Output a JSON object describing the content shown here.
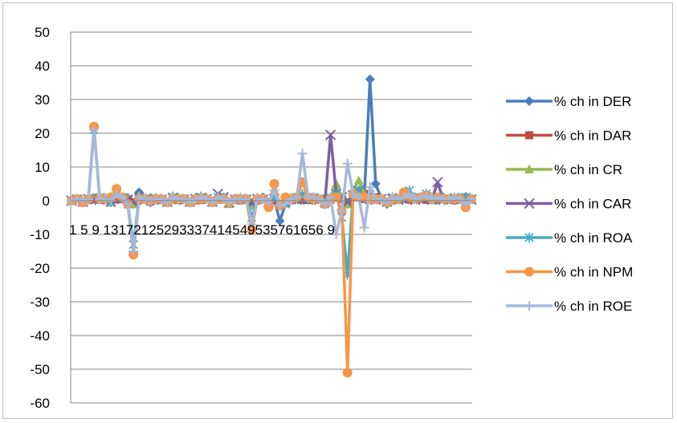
{
  "chart_data": {
    "type": "line",
    "ylim": [
      -60,
      50
    ],
    "yticks": [
      50,
      40,
      30,
      20,
      10,
      0,
      -10,
      -20,
      -30,
      -40,
      -50,
      -60
    ],
    "xlabel_text": "1 5 9 13172125293337414549535761656 9",
    "x_count": 72,
    "legend_position": "right",
    "grid": "horizontal",
    "series": [
      {
        "name": "% ch in DER",
        "color": "#4a7ebb",
        "marker": "diamond",
        "values": [
          0,
          0.5,
          -0.5,
          0.3,
          0.8,
          1,
          0.5,
          -0.3,
          0.6,
          1,
          0.8,
          -1,
          2.5,
          0.5,
          -0.5,
          0.8,
          0.3,
          -0.5,
          0.6,
          0.4,
          0.5,
          -0.3,
          0.2,
          0.3,
          0.5,
          -0.2,
          0.6,
          1,
          -0.5,
          0.4,
          0.3,
          0.5,
          -0.8,
          0.5,
          1,
          -0.5,
          0.3,
          -6,
          -1,
          0.5,
          0.8,
          0.5,
          0.3,
          1,
          0.5,
          -1,
          0.5,
          4,
          1,
          -1,
          2,
          3,
          1.5,
          36,
          5,
          0.5,
          -1,
          0.3,
          0.5,
          1,
          0.8,
          0.5,
          1,
          0.5,
          0.3,
          0.8,
          1,
          0.5,
          0.3,
          0.8,
          1.2,
          0.5
        ]
      },
      {
        "name": "% ch in DAR",
        "color": "#be4b48",
        "marker": "square",
        "values": [
          0,
          0.3,
          -0.3,
          0.2,
          0.5,
          0.3,
          0.2,
          -0.2,
          0.4,
          0.5,
          0.3,
          -0.5,
          1,
          0.3,
          -0.3,
          0.4,
          0.2,
          -0.3,
          0.3,
          0.2,
          0.3,
          -0.2,
          0.1,
          0.2,
          0.3,
          -0.1,
          0.3,
          0.5,
          -0.3,
          0.2,
          0.2,
          0.3,
          -0.5,
          0.3,
          0.5,
          -0.3,
          0.2,
          -1,
          -0.5,
          0.3,
          0.5,
          0.3,
          0.2,
          0.5,
          0.3,
          -0.5,
          0.3,
          1,
          0.5,
          -0.5,
          1,
          1.5,
          0.5,
          2,
          1,
          0.3,
          -0.5,
          0.2,
          0.3,
          0.5,
          0.4,
          0.3,
          0.5,
          0.3,
          0.2,
          0.4,
          0.5,
          0.3,
          0.2,
          0.4,
          0.6,
          0.3
        ]
      },
      {
        "name": "% ch in CR",
        "color": "#98b954",
        "marker": "triangle",
        "values": [
          0,
          0.5,
          -0.5,
          0.8,
          1,
          0.5,
          1,
          -0.5,
          2,
          1,
          0.5,
          -1,
          1.5,
          0.5,
          1,
          1,
          0.5,
          -0.5,
          1.5,
          1,
          0.5,
          -0.5,
          1,
          1.5,
          1,
          -0.5,
          1.5,
          1,
          -1,
          0.5,
          1,
          0.5,
          -1.5,
          1,
          0.5,
          -0.5,
          1,
          -1,
          -0.5,
          1,
          0.5,
          1,
          0.5,
          1,
          0.5,
          -0.5,
          1,
          5,
          1,
          -1,
          3,
          6,
          2,
          1,
          0.5,
          1,
          -0.5,
          1,
          0.5,
          1,
          1.5,
          0.5,
          1,
          2,
          0.5,
          1,
          0.5,
          0.5,
          1,
          0.5,
          1,
          0.5
        ]
      },
      {
        "name": "% ch in CAR",
        "color": "#7d60a0",
        "marker": "x",
        "values": [
          0,
          0.3,
          -0.3,
          0.5,
          0.5,
          0.3,
          0.5,
          -0.3,
          0.8,
          0.5,
          0.3,
          -0.5,
          0.8,
          0.3,
          0.5,
          0.5,
          0.3,
          -0.3,
          0.8,
          0.5,
          0.3,
          -0.3,
          0.5,
          0.8,
          0.5,
          -0.3,
          2,
          1,
          -0.5,
          0.3,
          0.5,
          0.3,
          -0.8,
          0.5,
          0.3,
          -0.3,
          0.5,
          -0.5,
          -0.3,
          0.5,
          0.3,
          0.5,
          0.3,
          0.5,
          0.3,
          -0.3,
          19.5,
          2,
          1,
          -0.5,
          1.5,
          3,
          1,
          0.5,
          0.3,
          0.5,
          -0.3,
          0.5,
          0.3,
          0.5,
          0.8,
          0.3,
          0.5,
          1,
          0.3,
          5.5,
          0.3,
          0.3,
          0.5,
          0.3,
          0.5,
          0.3
        ]
      },
      {
        "name": "% ch in ROA",
        "color": "#46aac5",
        "marker": "asterisk",
        "values": [
          0,
          0.5,
          0,
          0.5,
          21,
          1,
          0.5,
          -0.5,
          2,
          1,
          -1,
          -13,
          1,
          0.5,
          0,
          0.5,
          0.5,
          -0.5,
          1,
          0.5,
          0.5,
          -0.5,
          0.5,
          1,
          0.5,
          -0.5,
          1,
          0.5,
          -0.5,
          0.5,
          0.5,
          0.5,
          -5,
          0.5,
          0.5,
          -0.5,
          1,
          -1,
          -1,
          0.5,
          1,
          2,
          1,
          1,
          0.5,
          -1,
          1,
          2,
          -5,
          -22,
          2,
          3,
          1,
          1,
          0.5,
          0.5,
          -0.5,
          1,
          0.5,
          1,
          3,
          1,
          1,
          2,
          0.5,
          1,
          0.5,
          0.5,
          1,
          0.5,
          1,
          0.5
        ]
      },
      {
        "name": "% ch in NPM",
        "color": "#f79646",
        "marker": "circle",
        "values": [
          0,
          0.5,
          -0.5,
          0.5,
          22,
          0.5,
          0.5,
          1,
          3.5,
          1,
          -1,
          -16,
          0.5,
          0.5,
          0,
          0.5,
          0.5,
          -0.5,
          0.5,
          0.5,
          0.5,
          -0.5,
          0.5,
          0.5,
          0.5,
          -0.5,
          0.5,
          0.5,
          -0.5,
          0.5,
          0.5,
          0.5,
          -8.5,
          0.5,
          0.5,
          -2,
          5,
          -1.5,
          1,
          0.5,
          1,
          5.5,
          1,
          0.5,
          0.5,
          -1,
          0.5,
          1,
          -3,
          -51,
          2,
          1,
          1,
          0.5,
          0.5,
          0.5,
          -0.5,
          0.5,
          0.5,
          2.5,
          1,
          0.5,
          1,
          1.5,
          0.5,
          1,
          0.5,
          0.5,
          0.5,
          0.5,
          -2,
          0.5
        ]
      },
      {
        "name": "% ch in ROE",
        "color": "#a5b9dd",
        "marker": "plus",
        "values": [
          0,
          0.5,
          0,
          0.5,
          21,
          0.5,
          0.5,
          0,
          2,
          1,
          -1,
          -15,
          1,
          0.5,
          0,
          0.5,
          0.5,
          -0.5,
          1,
          0.5,
          0.5,
          -0.5,
          0.5,
          1,
          0.5,
          -0.5,
          1,
          0.5,
          -0.5,
          0.5,
          0.5,
          0.5,
          -7,
          0.5,
          0.5,
          -0.5,
          3,
          -1.5,
          -1,
          0.5,
          1,
          14,
          1,
          1,
          0.5,
          -1,
          1,
          -10,
          -3,
          11,
          2,
          1,
          -8,
          4,
          0.5,
          0.5,
          -0.5,
          1,
          0.5,
          1,
          2,
          0.5,
          1,
          1.5,
          0.5,
          1,
          0.5,
          0.5,
          1,
          0.5,
          -1,
          0.5
        ]
      }
    ]
  }
}
